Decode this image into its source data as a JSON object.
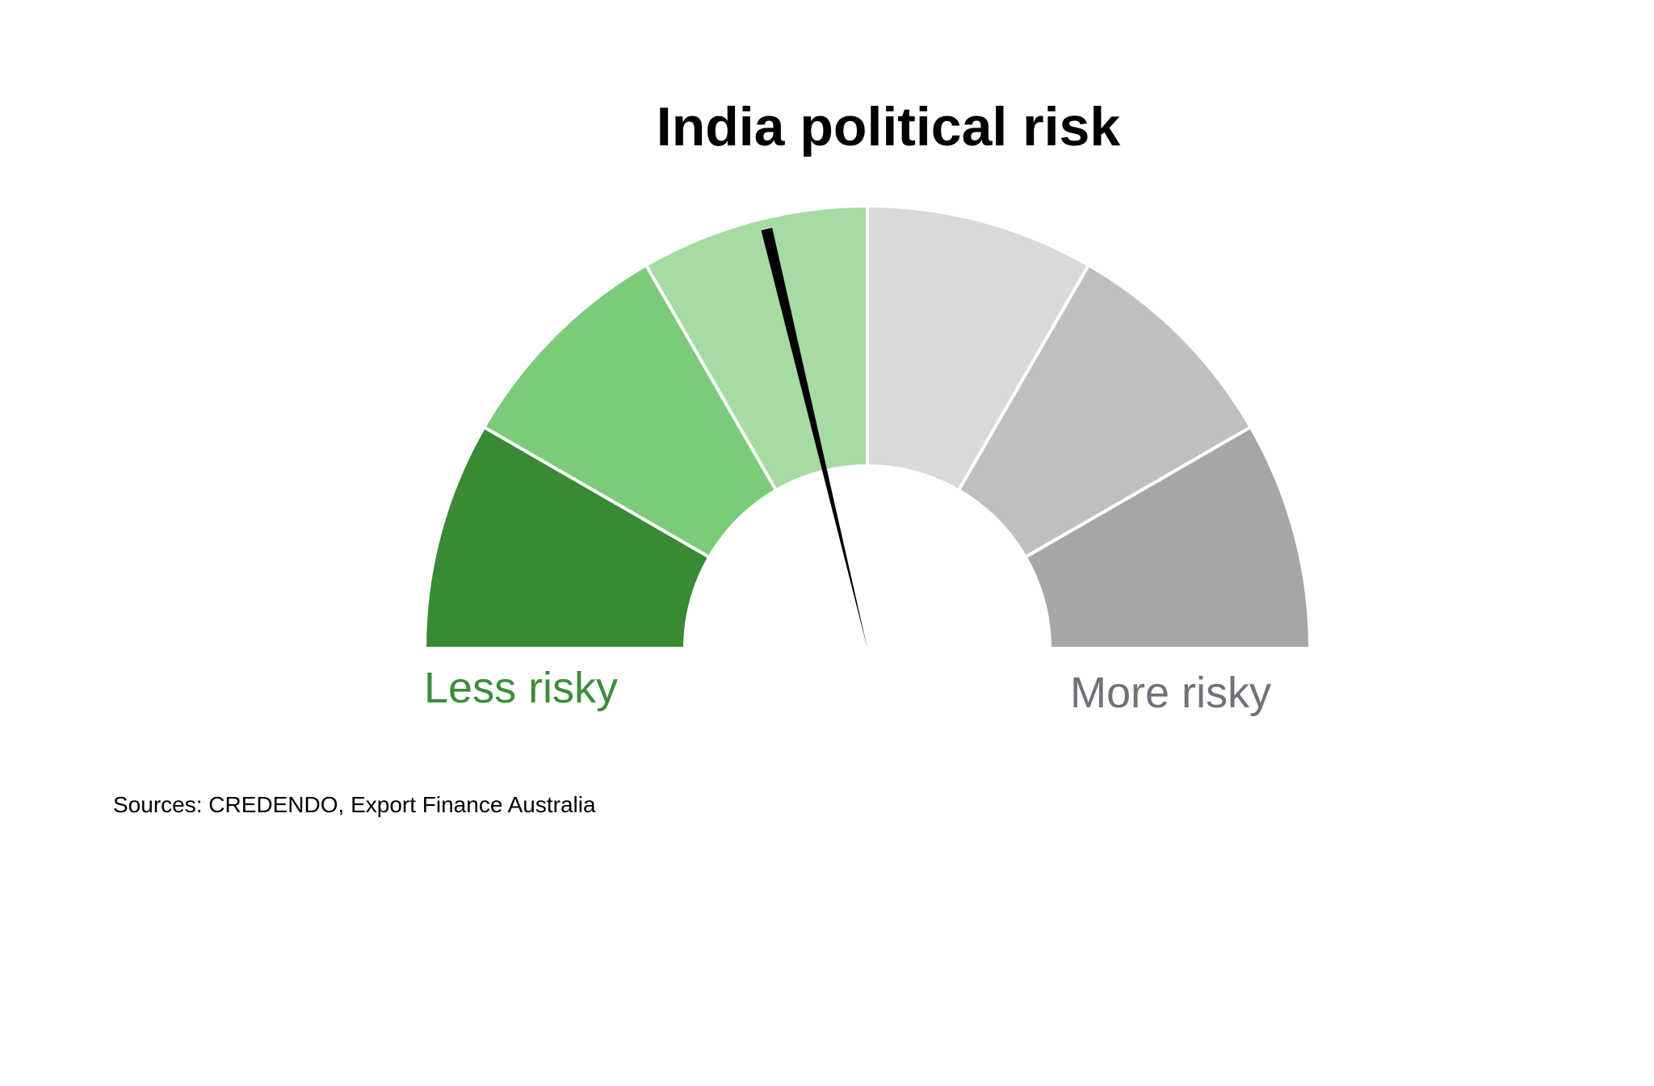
{
  "chart_data": {
    "type": "gauge",
    "title": "India political risk",
    "scale_min": 1,
    "scale_max": 7,
    "value": 3.55,
    "levels": [
      {
        "level": 1,
        "color": "#388a35"
      },
      {
        "level": 2,
        "color": "#7bcb7a"
      },
      {
        "level": 3,
        "color": "#a6dba4"
      },
      {
        "level": 4,
        "color": "#d9d9d9"
      },
      {
        "level": 5,
        "color": "#bfbfbf"
      },
      {
        "level": 6,
        "color": "#a6a6a6"
      }
    ],
    "needle_color": "#000000",
    "left_label": "Less risky",
    "right_label": "More risky",
    "left_label_color": "#3b8e3a",
    "right_label_color": "#6f7378"
  },
  "source": "Sources: CREDENDO, Export Finance Australia"
}
